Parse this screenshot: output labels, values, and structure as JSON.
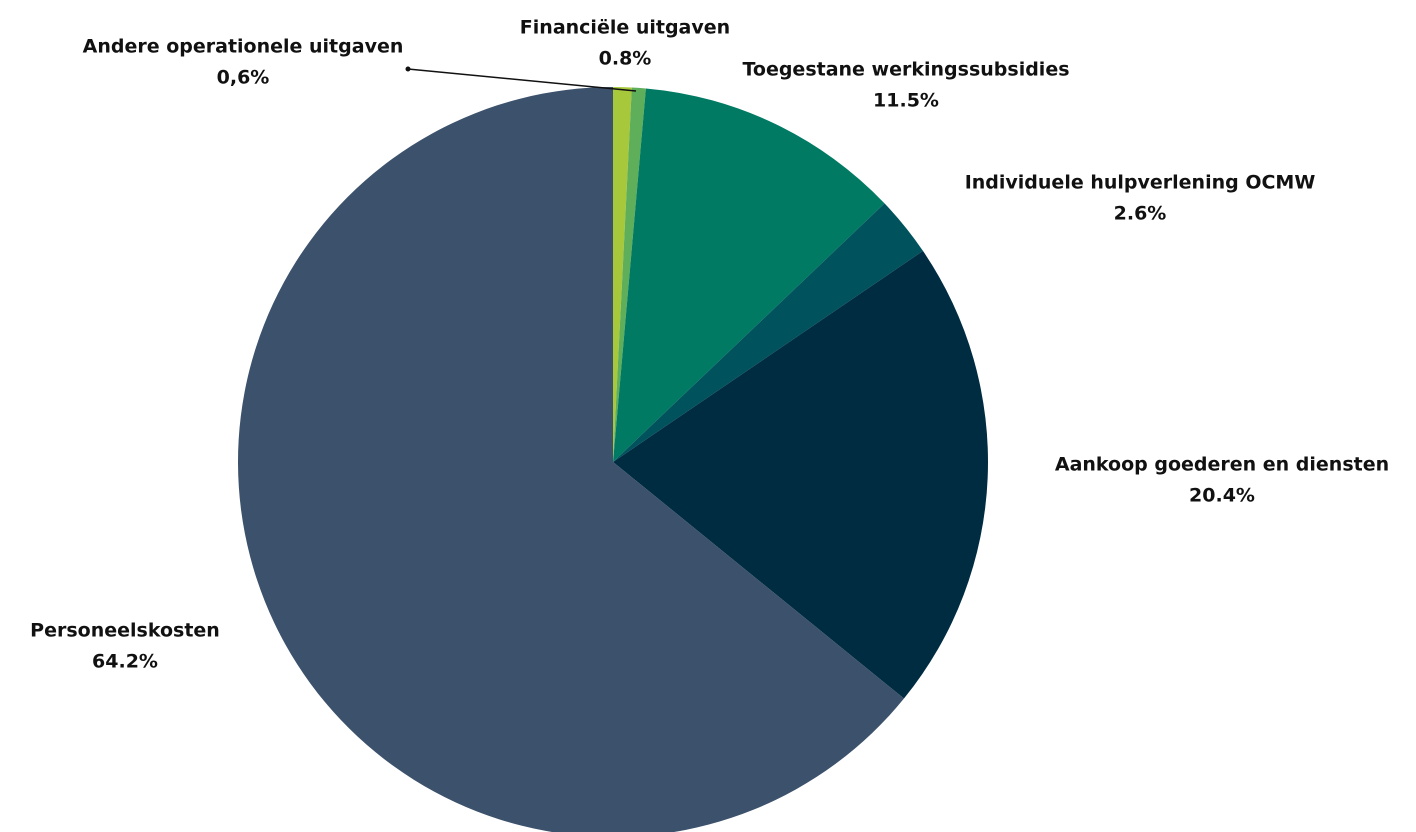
{
  "chart_data": {
    "type": "pie",
    "categories": [
      "Financiële uitgaven",
      "Andere operationele uitgaven",
      "Toegestane werkingssubsidies",
      "Individuele hulpverlening OCMW",
      "Aankoop goederen en diensten",
      "Personeelskosten"
    ],
    "values": [
      0.8,
      0.6,
      11.5,
      2.6,
      20.4,
      64.2
    ],
    "value_labels": [
      "0.8%",
      "0,6%",
      "11.5%",
      "2.6%",
      "20.4%",
      "64.2%"
    ],
    "colors": [
      "#a8c83c",
      "#5fae5a",
      "#007a63",
      "#00525c",
      "#002c42",
      "#3c516b"
    ]
  }
}
